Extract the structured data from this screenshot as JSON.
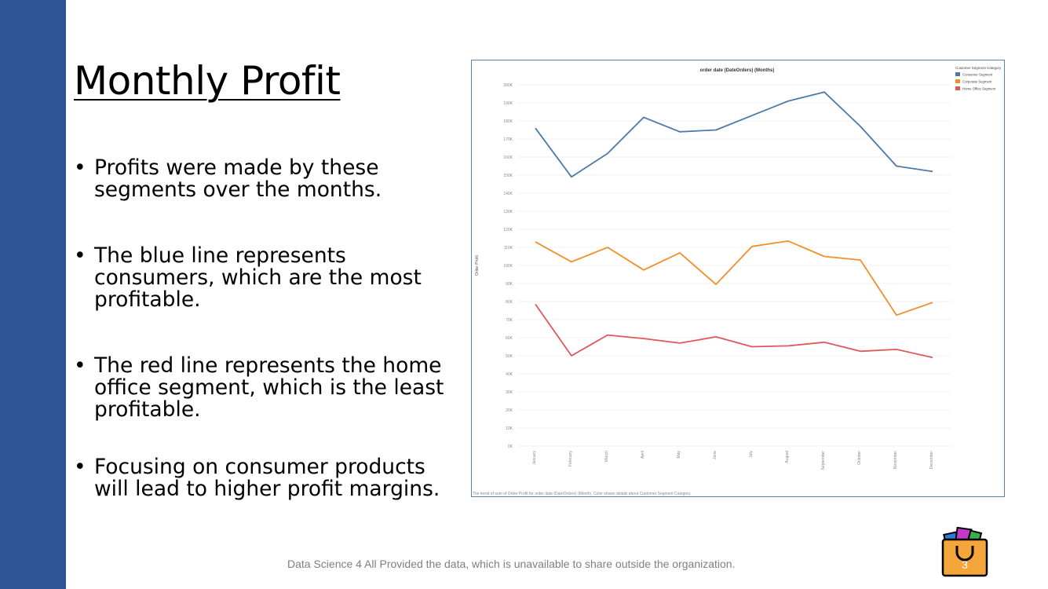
{
  "slide": {
    "title": "Monthly Profit",
    "bullets": [
      "Profits were made by these segments over the months.",
      "The blue line represents consumers, which are the most profitable.",
      "The red line represents the home office segment, which is the least profitable.",
      "Focusing on consumer products will lead to higher profit margins."
    ],
    "footer": "Data Science 4 All Provided the data, which is unavailable to share outside the organization.",
    "page_number": "3"
  },
  "colors": {
    "side_bar": "#2f5597",
    "consumer": "#4e79a7",
    "corporate": "#f28e2b",
    "home_office": "#e15759",
    "logo_bag": "#f4a63a"
  },
  "chart_data": {
    "type": "line",
    "title": "order date (DateOrders) (Months)",
    "ylabel": "Order Profit",
    "xlabel": "",
    "caption": "The trend of sum of Order Profit for order date (DateOrders) (Month). Color shows details about Customer Segment Category.",
    "legend_title": "Customer Segment Category",
    "legend_position": "top-right",
    "grid": true,
    "categories": [
      "January",
      "February",
      "March",
      "April",
      "May",
      "June",
      "July",
      "August",
      "September",
      "October",
      "November",
      "December"
    ],
    "y_ticks": [
      "0K",
      "10K",
      "20K",
      "30K",
      "40K",
      "50K",
      "60K",
      "70K",
      "80K",
      "90K",
      "100K",
      "110K",
      "120K",
      "130K",
      "140K",
      "150K",
      "160K",
      "170K",
      "180K",
      "190K",
      "200K"
    ],
    "ylim": [
      0,
      200000
    ],
    "series": [
      {
        "name": "Consumer Segment",
        "color": "#4e79a7",
        "values": [
          176000,
          149000,
          162000,
          182000,
          174000,
          175000,
          183000,
          191000,
          196000,
          177000,
          155000,
          152000
        ]
      },
      {
        "name": "Corporate Segment",
        "color": "#f28e2b",
        "values": [
          113000,
          102000,
          110000,
          97500,
          107000,
          89500,
          110500,
          113500,
          105000,
          103000,
          72500,
          79500
        ]
      },
      {
        "name": "Home Office Segment",
        "color": "#e15759",
        "values": [
          78500,
          50000,
          61500,
          59500,
          57000,
          60500,
          55000,
          55500,
          57500,
          52500,
          53500,
          49000
        ]
      }
    ]
  }
}
